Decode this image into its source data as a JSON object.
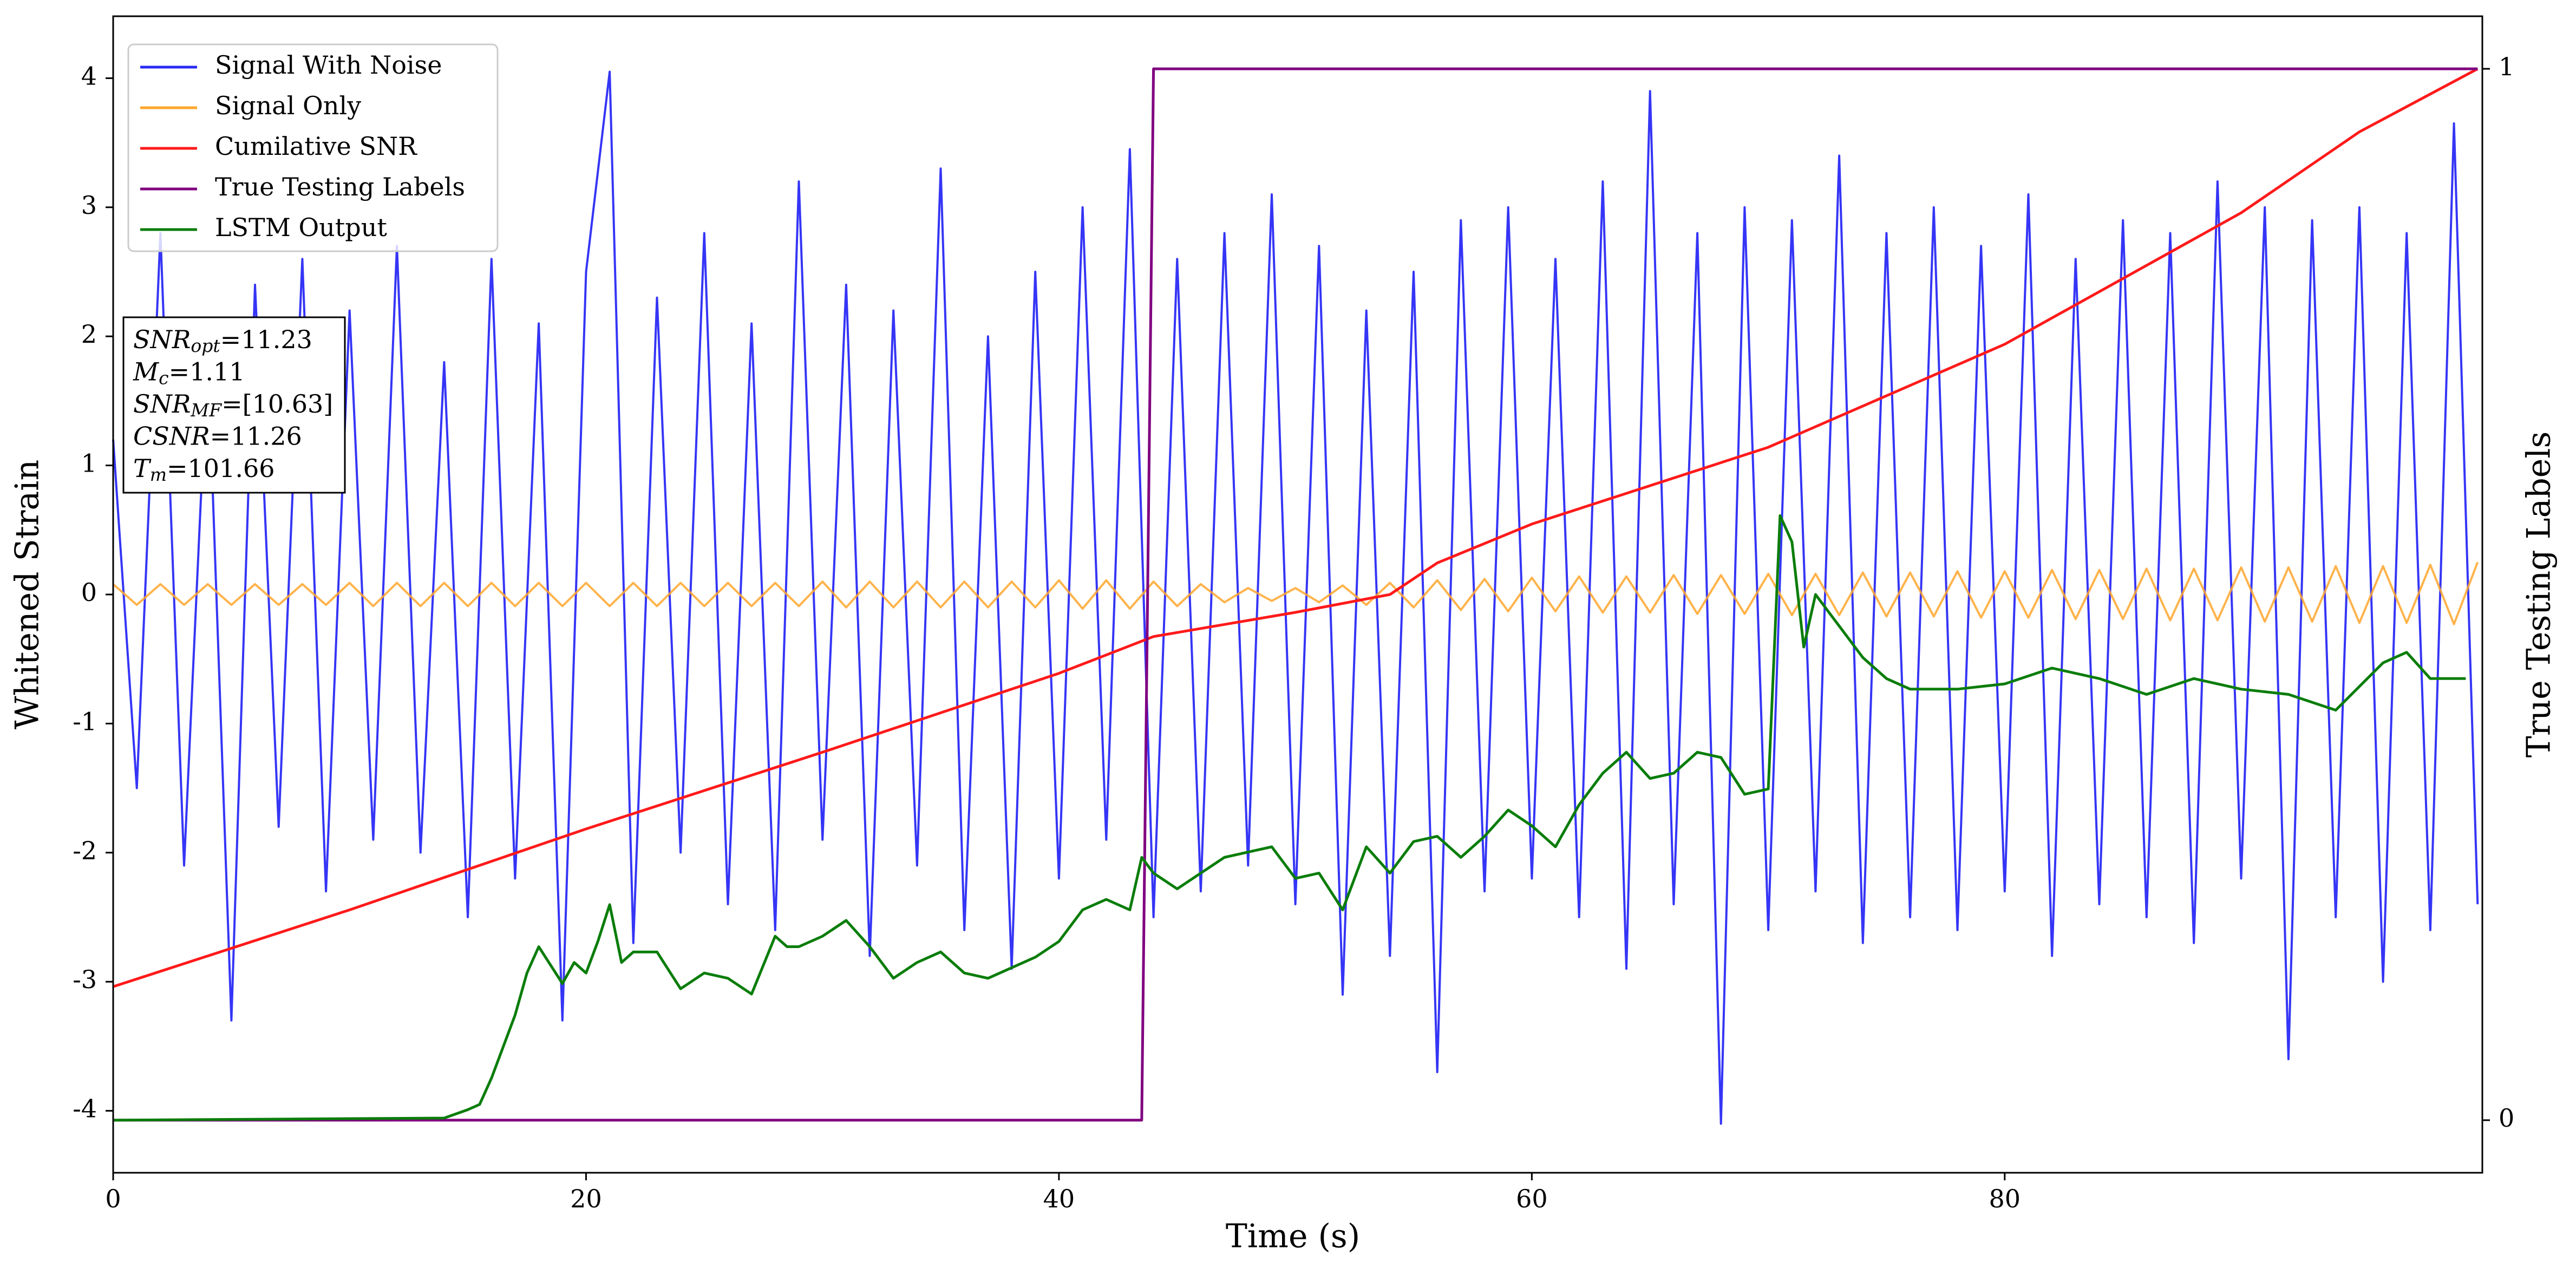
{
  "chart_data": {
    "type": "line",
    "xlabel": "Time (s)",
    "ylabel": "Whitened Strain",
    "y2label": "True Testing Labels",
    "xlim": [
      0,
      100.2
    ],
    "xticks": [
      0,
      20,
      40,
      60,
      80
    ],
    "ylim": [
      -4.48,
      4.48
    ],
    "yticks": [
      -4,
      -3,
      -2,
      -1,
      0,
      1,
      2,
      3,
      4
    ],
    "y2lim": [
      -0.05,
      1.05
    ],
    "y2ticks": [
      0,
      1
    ],
    "legend": "upper left",
    "x": [
      0,
      1,
      2,
      3,
      4,
      5,
      6,
      7,
      8,
      9,
      10,
      11,
      12,
      13,
      14,
      15,
      16,
      17,
      18,
      19,
      20,
      21,
      22,
      23,
      24,
      25,
      26,
      27,
      28,
      29,
      30,
      31,
      32,
      33,
      34,
      35,
      36,
      37,
      38,
      39,
      40,
      41,
      42,
      43,
      44,
      45,
      46,
      47,
      48,
      49,
      50,
      51,
      52,
      53,
      54,
      55,
      56,
      57,
      58,
      59,
      60,
      61,
      62,
      63,
      64,
      65,
      66,
      67,
      68,
      69,
      70,
      71,
      72,
      73,
      74,
      75,
      76,
      77,
      78,
      79,
      80,
      81,
      82,
      83,
      84,
      85,
      86,
      87,
      88,
      89,
      90,
      91,
      92,
      93,
      94,
      95,
      96,
      97,
      98,
      99,
      100
    ],
    "series": [
      {
        "name": "Signal With Noise",
        "color": "#2a2af5",
        "values": [
          1.2,
          -1.5,
          2.8,
          -2.1,
          1.9,
          -3.3,
          2.4,
          -1.8,
          2.6,
          -2.3,
          2.2,
          -1.9,
          2.7,
          -2.0,
          1.8,
          -2.5,
          2.6,
          -2.2,
          2.1,
          -3.3,
          2.5,
          4.05,
          -2.7,
          2.3,
          -2.0,
          2.8,
          -2.4,
          2.1,
          -2.6,
          3.2,
          -1.9,
          2.4,
          -2.8,
          2.2,
          -2.1,
          3.3,
          -2.6,
          2.0,
          -2.9,
          2.5,
          -2.2,
          3.0,
          -1.9,
          3.45,
          -2.5,
          2.6,
          -2.3,
          2.8,
          -2.1,
          3.1,
          -2.4,
          2.7,
          -3.1,
          2.2,
          -2.8,
          2.5,
          -3.7,
          2.9,
          -2.3,
          3.0,
          -2.2,
          2.6,
          -2.5,
          3.2,
          -2.9,
          3.9,
          -2.4,
          2.8,
          -4.1,
          3.0,
          -2.6,
          2.9,
          -2.3,
          3.4,
          -2.7,
          2.8,
          -2.5,
          3.0,
          -2.6,
          2.7,
          -2.3,
          3.1,
          -2.8,
          2.6,
          -2.4,
          2.9,
          -2.5,
          2.8,
          -2.7,
          3.2,
          -2.2,
          3.0,
          -3.6,
          2.9,
          -2.5,
          3.0,
          -3.0,
          2.8,
          -2.6,
          3.65,
          -2.4
        ]
      },
      {
        "name": "Signal Only",
        "color": "#ffa62b",
        "values": [
          0.08,
          -0.08,
          0.08,
          -0.08,
          0.08,
          -0.08,
          0.08,
          -0.08,
          0.08,
          -0.08,
          0.09,
          -0.09,
          0.09,
          -0.09,
          0.09,
          -0.09,
          0.09,
          -0.09,
          0.09,
          -0.09,
          0.09,
          -0.09,
          0.09,
          -0.09,
          0.09,
          -0.09,
          0.09,
          -0.09,
          0.09,
          -0.09,
          0.1,
          -0.1,
          0.1,
          -0.1,
          0.1,
          -0.1,
          0.1,
          -0.1,
          0.1,
          -0.1,
          0.11,
          -0.11,
          0.11,
          -0.11,
          0.1,
          -0.09,
          0.08,
          -0.06,
          0.05,
          -0.05,
          0.05,
          -0.06,
          0.07,
          -0.08,
          0.09,
          -0.1,
          0.11,
          -0.12,
          0.12,
          -0.13,
          0.13,
          -0.13,
          0.14,
          -0.14,
          0.14,
          -0.14,
          0.15,
          -0.15,
          0.15,
          -0.15,
          0.16,
          -0.16,
          0.16,
          -0.16,
          0.17,
          -0.17,
          0.17,
          -0.17,
          0.18,
          -0.18,
          0.18,
          -0.18,
          0.19,
          -0.19,
          0.19,
          -0.19,
          0.2,
          -0.2,
          0.2,
          -0.2,
          0.21,
          -0.21,
          0.21,
          -0.21,
          0.22,
          -0.22,
          0.22,
          -0.22,
          0.23,
          -0.23,
          0.25
        ]
      },
      {
        "name": "Cumilative SNR",
        "color": "#ff1a1a",
        "axis": "y2",
        "x": [
          0,
          10,
          20,
          30,
          40,
          44,
          50,
          54,
          56,
          60,
          70,
          80,
          90,
          95,
          100
        ],
        "values": [
          0.127,
          0.2,
          0.277,
          0.35,
          0.425,
          0.46,
          0.483,
          0.5,
          0.53,
          0.567,
          0.64,
          0.738,
          0.863,
          0.94,
          1.0
        ]
      },
      {
        "name": "True Testing Labels",
        "color": "#800080",
        "axis": "y2",
        "x": [
          0,
          43.5,
          44,
          100
        ],
        "values": [
          0,
          0,
          1,
          1
        ]
      },
      {
        "name": "LSTM Output",
        "color": "#0a7d0a",
        "axis": "y2",
        "x": [
          0,
          14,
          15,
          15.5,
          16,
          17,
          17.5,
          18,
          19,
          19.5,
          20,
          20.5,
          21,
          21.5,
          22,
          23,
          24,
          25,
          26,
          27,
          28,
          28.5,
          29,
          30,
          31,
          32,
          33,
          34,
          35,
          36,
          37,
          38,
          39,
          40,
          41,
          42,
          43,
          43.5,
          44,
          45,
          46,
          47,
          48,
          49,
          50,
          51,
          52,
          53,
          54,
          55,
          56,
          57,
          58,
          59,
          60,
          61,
          62,
          63,
          64,
          65,
          66,
          67,
          68,
          69,
          70,
          70.5,
          71,
          71.5,
          72,
          73,
          74,
          75,
          76,
          78,
          80,
          82,
          84,
          86,
          88,
          90,
          92,
          94,
          96,
          97,
          98,
          99.5
        ],
        "values": [
          0,
          0.002,
          0.01,
          0.015,
          0.04,
          0.1,
          0.14,
          0.165,
          0.13,
          0.15,
          0.14,
          0.17,
          0.205,
          0.15,
          0.16,
          0.16,
          0.125,
          0.14,
          0.135,
          0.12,
          0.175,
          0.165,
          0.165,
          0.175,
          0.19,
          0.165,
          0.135,
          0.15,
          0.16,
          0.14,
          0.135,
          0.145,
          0.155,
          0.17,
          0.2,
          0.21,
          0.2,
          0.25,
          0.235,
          0.22,
          0.235,
          0.25,
          0.255,
          0.26,
          0.23,
          0.235,
          0.2,
          0.26,
          0.235,
          0.265,
          0.27,
          0.25,
          0.27,
          0.295,
          0.28,
          0.26,
          0.3,
          0.33,
          0.35,
          0.325,
          0.33,
          0.35,
          0.345,
          0.31,
          0.315,
          0.575,
          0.55,
          0.45,
          0.5,
          0.47,
          0.44,
          0.42,
          0.41,
          0.41,
          0.415,
          0.43,
          0.42,
          0.405,
          0.42,
          0.41,
          0.405,
          0.39,
          0.435,
          0.445,
          0.42,
          0.42
        ]
      }
    ],
    "annotations": [
      {
        "main": "SNR",
        "sub": "opt",
        "rest": "=11.23"
      },
      {
        "main": "M",
        "sub": "c",
        "rest": "=1.11"
      },
      {
        "main": "SNR",
        "sub": "MF",
        "rest": "=[10.63]"
      },
      {
        "main": "CSNR",
        "rest": "=11.26"
      },
      {
        "main": "T",
        "sub": "m",
        "rest": "=101.66"
      }
    ]
  }
}
